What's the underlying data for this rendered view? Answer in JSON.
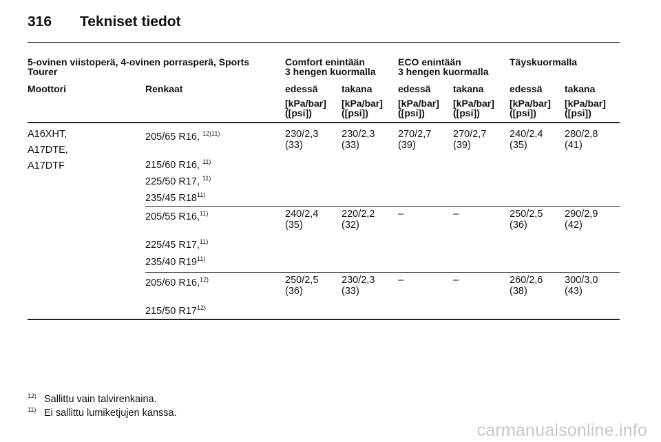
{
  "page": {
    "number": "316",
    "title": "Tekniset tiedot"
  },
  "table": {
    "group_header": {
      "vehicle": "5-ovinen viistoperä, 4-ovinen porrasperä, Sports Tourer",
      "comfort_line1": "Comfort enintään",
      "comfort_line2": "3 hengen kuormalla",
      "eco_line1": "ECO enintään",
      "eco_line2": "3 hengen kuormalla",
      "full": "Täyskuormalla"
    },
    "col_header": {
      "engine": "Moottori",
      "tyres": "Renkaat",
      "front": "edessä",
      "rear": "takana",
      "unit_line1": "[kPa/bar]",
      "unit_line2": "([psi])"
    },
    "engines": [
      "A16XHT,",
      "A17DTE,",
      "A17DTF"
    ],
    "groups": [
      {
        "tyres": [
          {
            "size": "205/65 R16, ",
            "note": "12)11)"
          },
          {
            "size": "215/60 R16, ",
            "note": "11)"
          },
          {
            "size": "225/50 R17, ",
            "note": "11)"
          },
          {
            "size": "235/45 R18",
            "note": "11)"
          }
        ],
        "values": [
          [
            "230/2,3",
            "(33)"
          ],
          [
            "230/2,3",
            "(33)"
          ],
          [
            "270/2,7",
            "(39)"
          ],
          [
            "270/2,7",
            "(39)"
          ],
          [
            "240/2,4",
            "(35)"
          ],
          [
            "280/2,8",
            "(41)"
          ]
        ]
      },
      {
        "tyres": [
          {
            "size": "205/55 R16,",
            "note": "11)"
          },
          {
            "size": "225/45 R17,",
            "note": "11)"
          },
          {
            "size": "235/40 R19",
            "note": "11)"
          }
        ],
        "values": [
          [
            "240/2,4",
            "(35)"
          ],
          [
            "220/2,2",
            "(32)"
          ],
          [
            "–",
            ""
          ],
          [
            "–",
            ""
          ],
          [
            "250/2,5",
            "(36)"
          ],
          [
            "290/2,9",
            "(42)"
          ]
        ]
      },
      {
        "tyres": [
          {
            "size": "205/60 R16,",
            "note": "12)"
          },
          {
            "size": "215/50 R17",
            "note": "12)"
          }
        ],
        "values": [
          [
            "250/2,5",
            "(36)"
          ],
          [
            "230/2,3",
            "(33)"
          ],
          [
            "–",
            ""
          ],
          [
            "–",
            ""
          ],
          [
            "260/2,6",
            "(38)"
          ],
          [
            "300/3,0",
            "(43)"
          ]
        ]
      }
    ]
  },
  "footnotes": [
    {
      "mark": "12)",
      "text": "Sallittu vain talvirenkaina."
    },
    {
      "mark": "11)",
      "text": "Ei sallittu lumiketjujen kanssa."
    }
  ],
  "watermark": "carmanualsonline.info"
}
